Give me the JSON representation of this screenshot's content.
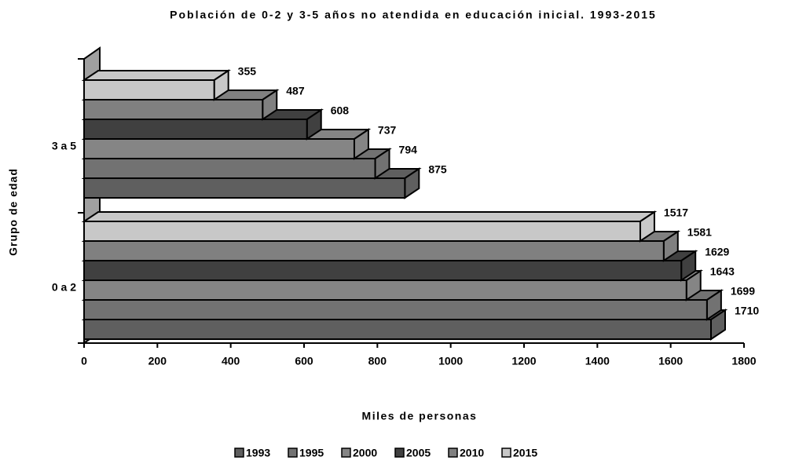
{
  "chart_data": {
    "type": "bar3d_horizontal",
    "title": "Población de 0-2 y 3-5 años no atendida en educación inicial. 1993-2015",
    "x_label": "Miles de personas",
    "y_label": "Grupo de edad",
    "categories": [
      "0 a 2",
      "3 a 5"
    ],
    "series": [
      {
        "name": "1993",
        "color": "#5f5f5f",
        "values": [
          1710,
          875
        ]
      },
      {
        "name": "1995",
        "color": "#727272",
        "values": [
          1699,
          794
        ]
      },
      {
        "name": "2000",
        "color": "#858585",
        "values": [
          1643,
          737
        ]
      },
      {
        "name": "2005",
        "color": "#404040",
        "values": [
          1629,
          608
        ]
      },
      {
        "name": "2010",
        "color": "#808080",
        "values": [
          1581,
          487
        ]
      },
      {
        "name": "2015",
        "color": "#c8c8c8",
        "values": [
          1517,
          355
        ]
      }
    ],
    "xlim": [
      0,
      1800
    ],
    "xticks": [
      0,
      200,
      400,
      600,
      800,
      1000,
      1200,
      1400,
      1600,
      1800
    ],
    "legend": "bottom"
  }
}
